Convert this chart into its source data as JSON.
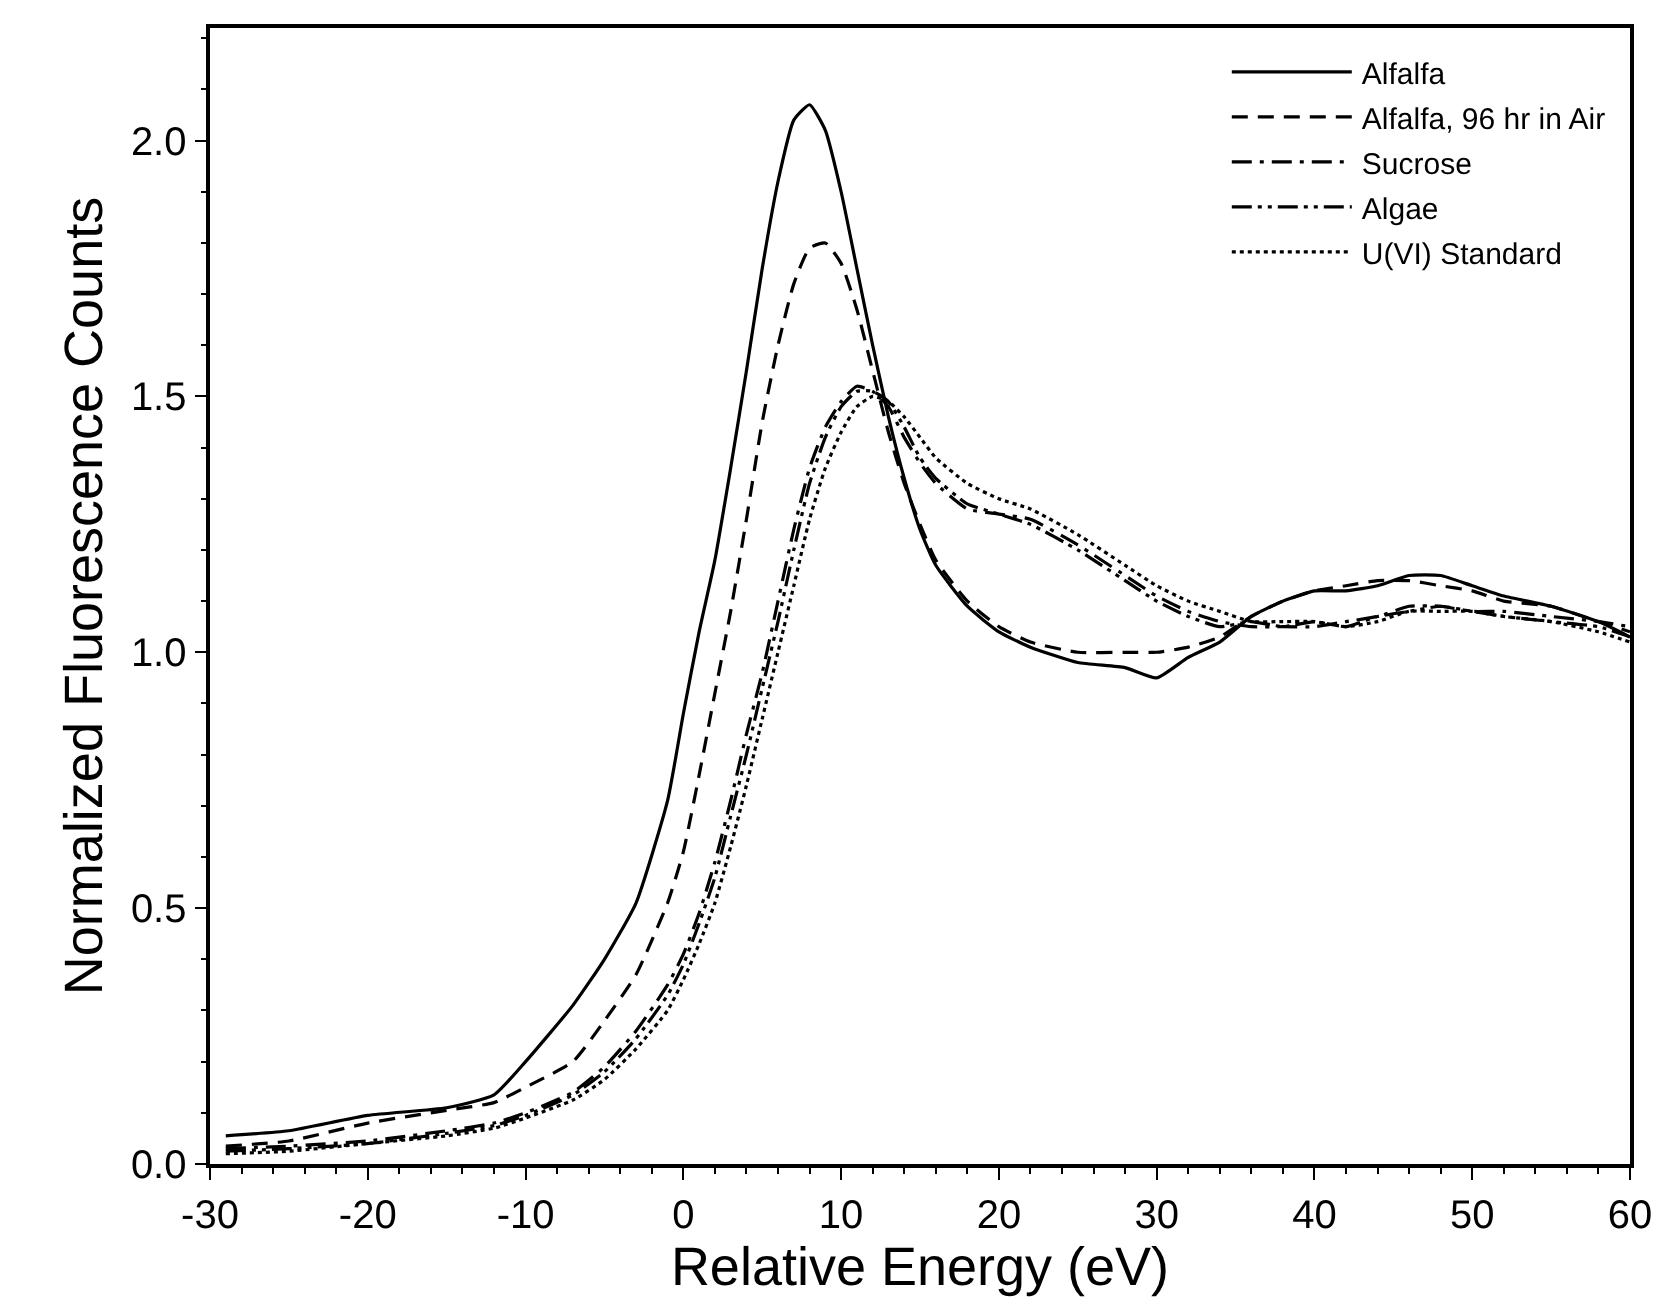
{
  "chart_data": {
    "type": "line",
    "xlabel": "Relative Energy (eV)",
    "ylabel": "Normalized Fluorescence Counts",
    "x": [
      -29,
      -25,
      -20,
      -15,
      -12,
      -10,
      -7,
      -5,
      -3,
      -1,
      0,
      1,
      2,
      3,
      4,
      5,
      6,
      7,
      8,
      9,
      10,
      11,
      12,
      13,
      14,
      15,
      16,
      18,
      20,
      22,
      25,
      28,
      30,
      32,
      34,
      36,
      38,
      40,
      42,
      44,
      46,
      48,
      50,
      52,
      55,
      58,
      60
    ],
    "series": [
      {
        "name": "Alfalfa",
        "color": "#000000",
        "line_style": "solid",
        "values": [
          0.055,
          0.065,
          0.095,
          0.11,
          0.135,
          0.2,
          0.31,
          0.4,
          0.51,
          0.71,
          0.88,
          1.04,
          1.18,
          1.36,
          1.55,
          1.75,
          1.92,
          2.04,
          2.07,
          2.02,
          1.9,
          1.75,
          1.6,
          1.46,
          1.34,
          1.24,
          1.17,
          1.09,
          1.04,
          1.01,
          0.98,
          0.97,
          0.95,
          0.99,
          1.02,
          1.07,
          1.1,
          1.12,
          1.12,
          1.13,
          1.15,
          1.15,
          1.13,
          1.11,
          1.09,
          1.06,
          1.03
        ]
      },
      {
        "name": "Alfalfa, 96 hr in Air",
        "color": "#000000",
        "line_style": "dashed",
        "values": [
          0.035,
          0.045,
          0.08,
          0.105,
          0.12,
          0.15,
          0.2,
          0.28,
          0.37,
          0.51,
          0.61,
          0.76,
          0.92,
          1.08,
          1.26,
          1.45,
          1.6,
          1.72,
          1.79,
          1.8,
          1.76,
          1.67,
          1.55,
          1.43,
          1.33,
          1.25,
          1.18,
          1.1,
          1.05,
          1.02,
          1.0,
          1.0,
          1.0,
          1.01,
          1.03,
          1.07,
          1.1,
          1.12,
          1.13,
          1.14,
          1.14,
          1.13,
          1.12,
          1.1,
          1.09,
          1.06,
          1.04
        ]
      },
      {
        "name": "Sucrose",
        "color": "#000000",
        "line_style": "dashdot",
        "values": [
          0.03,
          0.035,
          0.045,
          0.065,
          0.08,
          0.1,
          0.14,
          0.19,
          0.26,
          0.35,
          0.41,
          0.49,
          0.59,
          0.71,
          0.84,
          0.96,
          1.1,
          1.24,
          1.36,
          1.44,
          1.49,
          1.52,
          1.51,
          1.48,
          1.42,
          1.37,
          1.33,
          1.28,
          1.27,
          1.26,
          1.21,
          1.15,
          1.11,
          1.08,
          1.06,
          1.05,
          1.05,
          1.05,
          1.06,
          1.07,
          1.09,
          1.09,
          1.08,
          1.08,
          1.07,
          1.06,
          1.05
        ]
      },
      {
        "name": "Algae",
        "color": "#000000",
        "line_style": "dashdotdot",
        "values": [
          0.025,
          0.03,
          0.04,
          0.06,
          0.075,
          0.095,
          0.135,
          0.18,
          0.245,
          0.33,
          0.39,
          0.47,
          0.56,
          0.68,
          0.8,
          0.93,
          1.06,
          1.2,
          1.33,
          1.42,
          1.48,
          1.51,
          1.51,
          1.49,
          1.44,
          1.38,
          1.34,
          1.29,
          1.27,
          1.25,
          1.2,
          1.14,
          1.1,
          1.07,
          1.05,
          1.06,
          1.05,
          1.06,
          1.05,
          1.07,
          1.08,
          1.09,
          1.08,
          1.07,
          1.06,
          1.05,
          1.03
        ]
      },
      {
        "name": "U(VI) Standard",
        "color": "#000000",
        "line_style": "dotted",
        "values": [
          0.02,
          0.025,
          0.04,
          0.055,
          0.07,
          0.09,
          0.125,
          0.165,
          0.225,
          0.3,
          0.36,
          0.43,
          0.51,
          0.62,
          0.74,
          0.87,
          1.0,
          1.13,
          1.26,
          1.36,
          1.43,
          1.48,
          1.5,
          1.49,
          1.46,
          1.42,
          1.38,
          1.33,
          1.3,
          1.28,
          1.23,
          1.17,
          1.13,
          1.1,
          1.08,
          1.06,
          1.06,
          1.06,
          1.05,
          1.06,
          1.08,
          1.08,
          1.08,
          1.07,
          1.06,
          1.04,
          1.02
        ]
      }
    ],
    "xlim": [
      -30,
      60
    ],
    "xticks": [
      -30,
      -20,
      -10,
      0,
      10,
      20,
      30,
      40,
      50,
      60
    ],
    "ylim": [
      0,
      2.22
    ],
    "yticks": [
      {
        "value": 0,
        "label": "0.0"
      },
      {
        "value": 0.5,
        "label": "0.5"
      },
      {
        "value": 1,
        "label": "1.0"
      },
      {
        "value": 1.5,
        "label": "1.5"
      },
      {
        "value": 2,
        "label": "2.0"
      }
    ],
    "legend": "top right",
    "marker": "none"
  }
}
